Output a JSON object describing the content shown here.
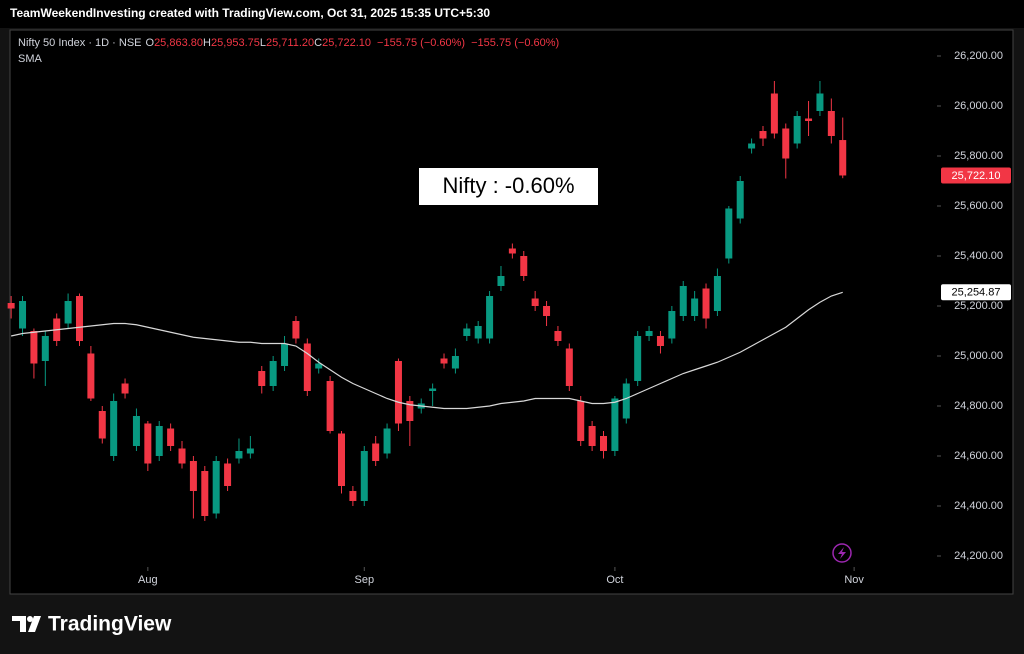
{
  "header": {
    "title": "TeamWeekendInvesting created with TradingView.com, Oct 31, 2025 15:35 UTC+5:30"
  },
  "legend": {
    "ohlc": [
      {
        "key": "O",
        "value": "25,863.80"
      },
      {
        "key": "H",
        "value": "25,953.75"
      },
      {
        "key": "L",
        "value": "25,711.20"
      },
      {
        "key": "C",
        "value": "25,722.10"
      }
    ],
    "change": [
      "−155.75 (−0.60%)",
      "−155.75 (−0.60%)"
    ]
  },
  "chart_data": {
    "type": "candlestick",
    "annotation": "Nifty : -0.60%",
    "x": [
      0,
      1,
      2,
      3,
      4,
      5,
      6,
      7,
      8,
      9,
      10,
      11,
      12,
      13,
      14,
      15,
      16,
      17,
      18,
      19,
      20,
      21,
      22,
      23,
      24,
      25,
      26,
      27,
      28,
      29,
      30,
      31,
      32,
      33,
      34,
      35,
      36,
      37,
      38,
      39,
      40,
      41,
      42,
      43,
      44,
      45,
      46,
      47,
      48,
      49,
      50,
      51,
      52,
      53,
      54,
      55,
      56,
      57,
      58,
      59,
      60,
      61,
      62,
      63,
      64,
      65,
      66,
      67,
      68,
      69,
      70,
      71,
      72,
      73
    ],
    "xlim": [
      -0.1,
      81.1
    ],
    "xticks": [
      {
        "value": 12,
        "label": "Aug"
      },
      {
        "value": 31,
        "label": "Sep"
      },
      {
        "value": 53,
        "label": "Oct"
      },
      {
        "value": 74,
        "label": "Nov"
      }
    ],
    "ylim": [
      24164,
      26304
    ],
    "yticks": [
      {
        "value": 24200,
        "label": "24,200.00"
      },
      {
        "value": 24400,
        "label": "24,400.00"
      },
      {
        "value": 24600,
        "label": "24,600.00"
      },
      {
        "value": 24800,
        "label": "24,800.00"
      },
      {
        "value": 25000,
        "label": "25,000.00"
      },
      {
        "value": 25200,
        "label": "25,200.00"
      },
      {
        "value": 25400,
        "label": "25,400.00"
      },
      {
        "value": 25600,
        "label": "25,600.00"
      },
      {
        "value": 25800,
        "label": "25,800.00"
      },
      {
        "value": 26000,
        "label": "26,000.00"
      },
      {
        "value": 26200,
        "label": "26,200.00"
      }
    ],
    "series": [
      {
        "name": "Nifty 50 Index · 1D · NSE",
        "type": "candlestick",
        "up_color": "#089981",
        "down_color": "#f23645",
        "open": [
          25212,
          25110,
          25100,
          24980,
          25150,
          25130,
          25240,
          25010,
          24780,
          24600,
          24890,
          24640,
          24730,
          24600,
          24710,
          24630,
          24580,
          24540,
          24370,
          24570,
          24590,
          24610,
          24940,
          24880,
          24960,
          25140,
          25050,
          24950,
          24900,
          24690,
          24460,
          24420,
          24650,
          24610,
          24980,
          24820,
          24790,
          24860,
          24990,
          24950,
          25080,
          25070,
          25070,
          25280,
          25430,
          25400,
          25230,
          25200,
          25100,
          25030,
          24820,
          24720,
          24680,
          24620,
          24750,
          24900,
          25080,
          25080,
          25070,
          25160,
          25160,
          25270,
          25180,
          25390,
          25550,
          25830,
          25900,
          26050,
          25910,
          25850,
          25950,
          25980,
          25980,
          25863.8
        ],
        "high": [
          25240,
          25240,
          25110,
          25100,
          25170,
          25250,
          25250,
          25040,
          24800,
          24850,
          24910,
          24790,
          24740,
          24740,
          24730,
          24660,
          24600,
          24560,
          24600,
          24590,
          24670,
          24680,
          24960,
          25000,
          25080,
          25160,
          25070,
          24990,
          24920,
          24700,
          24480,
          24640,
          24680,
          24730,
          24990,
          24840,
          24830,
          24890,
          25010,
          25030,
          25130,
          25140,
          25260,
          25360,
          25450,
          25420,
          25260,
          25220,
          25120,
          25050,
          24840,
          24740,
          24700,
          24840,
          24910,
          25100,
          25120,
          25100,
          25200,
          25300,
          25260,
          25290,
          25350,
          25600,
          25720,
          25870,
          25920,
          26100,
          25930,
          25980,
          26020,
          26100,
          26030,
          25953.75
        ],
        "low": [
          25150,
          25080,
          24910,
          24880,
          25040,
          25110,
          25040,
          24820,
          24650,
          24580,
          24830,
          24620,
          24540,
          24580,
          24620,
          24550,
          24350,
          24340,
          24350,
          24460,
          24570,
          24590,
          24850,
          24860,
          24940,
          25050,
          24840,
          24930,
          24690,
          24450,
          24400,
          24400,
          24560,
          24590,
          24700,
          24640,
          24770,
          24800,
          24950,
          24930,
          25060,
          25050,
          25050,
          25260,
          25390,
          25300,
          25180,
          25120,
          25040,
          24860,
          24640,
          24620,
          24590,
          24600,
          24730,
          24880,
          25060,
          25010,
          25050,
          25140,
          25140,
          25110,
          25160,
          25370,
          25530,
          25810,
          25840,
          25870,
          25710,
          25830,
          25880,
          25960,
          25850,
          25711.2
        ],
        "close": [
          25190,
          25220,
          24970,
          25080,
          25060,
          25220,
          25060,
          24830,
          24670,
          24820,
          24850,
          24760,
          24570,
          24720,
          24640,
          24570,
          24460,
          24360,
          24580,
          24480,
          24620,
          24630,
          24880,
          24980,
          25050,
          25070,
          24860,
          24970,
          24700,
          24480,
          24420,
          24620,
          24580,
          24710,
          24730,
          24740,
          24810,
          24870,
          24970,
          25000,
          25110,
          25120,
          25240,
          25320,
          25410,
          25320,
          25200,
          25160,
          25060,
          24880,
          24660,
          24640,
          24620,
          24830,
          24890,
          25080,
          25100,
          25040,
          25180,
          25280,
          25230,
          25150,
          25320,
          25590,
          25700,
          25850,
          25870,
          25890,
          25790,
          25960,
          25940,
          26050,
          25880,
          25722.1
        ]
      },
      {
        "name": "SMA",
        "type": "line",
        "color": "#d8d8d8",
        "values": [
          25080,
          25090,
          25095,
          25100,
          25105,
          25110,
          25115,
          25120,
          25125,
          25130,
          25130,
          25125,
          25115,
          25105,
          25095,
          25085,
          25075,
          25070,
          25065,
          25060,
          25055,
          25055,
          25050,
          25050,
          25050,
          25040,
          25010,
          24975,
          24945,
          24915,
          24890,
          24870,
          24850,
          24830,
          24815,
          24805,
          24800,
          24795,
          24790,
          24790,
          24790,
          24795,
          24800,
          24810,
          24815,
          24820,
          24830,
          24830,
          24830,
          24830,
          24820,
          24810,
          24810,
          24815,
          24830,
          24850,
          24870,
          24890,
          24910,
          24930,
          24945,
          24960,
          24975,
          24995,
          25015,
          25040,
          25065,
          25090,
          25115,
          25150,
          25185,
          25215,
          25240,
          25254.87
        ]
      }
    ],
    "price_labels": [
      {
        "value": 25722.1,
        "label": "25,722.10",
        "color": "#f23645",
        "text_color": "#ffffff"
      },
      {
        "value": 25254.87,
        "label": "25,254.87",
        "color": "#ffffff",
        "text_color": "#000000"
      }
    ]
  },
  "footer": {
    "brand": "TradingView"
  }
}
